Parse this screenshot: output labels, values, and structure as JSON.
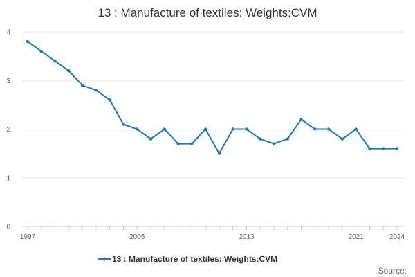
{
  "chart_data": {
    "type": "line",
    "title": "13 : Manufacture of textiles: Weights:CVM",
    "xlabel": "",
    "ylabel": "",
    "x": [
      1997,
      1998,
      1999,
      2000,
      2001,
      2002,
      2003,
      2004,
      2005,
      2006,
      2007,
      2008,
      2009,
      2010,
      2011,
      2012,
      2013,
      2014,
      2015,
      2016,
      2017,
      2018,
      2019,
      2020,
      2021,
      2022,
      2023,
      2024
    ],
    "x_ticks": [
      "1997",
      "2005",
      "2013",
      "2021",
      "2024"
    ],
    "y_ticks": [
      "0",
      "1",
      "2",
      "3",
      "4"
    ],
    "ylim": [
      0,
      4
    ],
    "xlim": [
      1997,
      2024
    ],
    "grid": true,
    "legend_position": "bottom",
    "series": [
      {
        "name": "13 : Manufacture of textiles: Weights:CVM",
        "color": "#1a7ab5",
        "values": [
          3.8,
          3.6,
          3.4,
          3.2,
          2.9,
          2.8,
          2.6,
          2.1,
          2.0,
          1.8,
          2.0,
          1.7,
          1.7,
          2.0,
          1.5,
          2.0,
          2.0,
          1.8,
          1.7,
          1.8,
          2.2,
          2.0,
          2.0,
          1.8,
          2.0,
          1.6,
          1.6,
          1.6
        ]
      }
    ]
  },
  "source_label": "Source:"
}
